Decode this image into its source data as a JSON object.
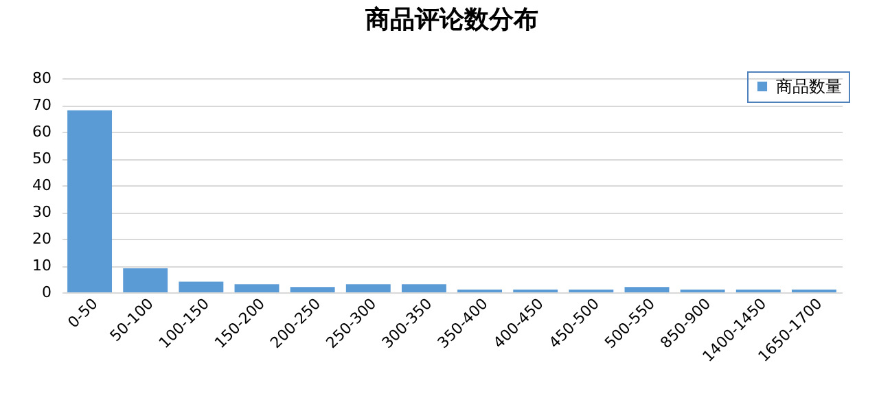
{
  "chart_data": {
    "type": "bar",
    "title": "商品评论数分布",
    "categories": [
      "0-50",
      "50-100",
      "100-150",
      "150-200",
      "200-250",
      "250-300",
      "300-350",
      "350-400",
      "400-450",
      "450-500",
      "500-550",
      "850-900",
      "1400-1450",
      "1650-1700"
    ],
    "series": [
      {
        "name": "商品数量",
        "color": "#5b9bd5",
        "values": [
          68,
          9,
          4,
          3,
          2,
          3,
          3,
          1,
          1,
          1,
          2,
          1,
          1,
          1
        ]
      }
    ],
    "ylim": [
      0,
      80
    ],
    "yticks": [
      0,
      10,
      20,
      30,
      40,
      50,
      60,
      70,
      80
    ],
    "grid": "y",
    "legend": "top right"
  }
}
